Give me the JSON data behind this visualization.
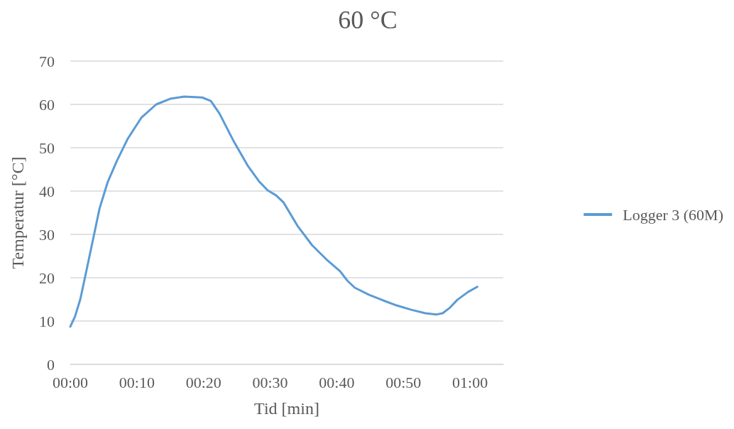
{
  "chart_data": {
    "type": "line",
    "title": "60 °C",
    "xlabel": "Tid [min]",
    "ylabel": "Temperatur [°C]",
    "xlim": [
      0,
      65
    ],
    "xticks": [
      {
        "value": 0,
        "label": "00:00"
      },
      {
        "value": 10,
        "label": "00:10"
      },
      {
        "value": 20,
        "label": "00:20"
      },
      {
        "value": 30,
        "label": "00:30"
      },
      {
        "value": 40,
        "label": "00:40"
      },
      {
        "value": 50,
        "label": "00:50"
      },
      {
        "value": 60,
        "label": "01:00"
      }
    ],
    "ylim": [
      0,
      70
    ],
    "yticks": [
      0,
      10,
      20,
      30,
      40,
      50,
      60,
      70
    ],
    "grid": "y",
    "legend": "right",
    "marker": "none",
    "line_style": "solid",
    "series": [
      {
        "name": "Logger 3 (60M)",
        "color": "#5b9bd5",
        "x": [
          0,
          0.7,
          1.5,
          2.2,
          3.3,
          4.4,
          5.6,
          7,
          8.6,
          10.7,
          12.9,
          15,
          17.1,
          19.8,
          21.1,
          22.4,
          24.6,
          26.7,
          28.3,
          29.6,
          30.9,
          32,
          34.1,
          36.3,
          38.4,
          40.5,
          41.6,
          42.7,
          44.8,
          46.9,
          49,
          51.2,
          53.3,
          54.9,
          55.9,
          57,
          58.1,
          59.7,
          61.1
        ],
        "values": [
          8.7,
          11,
          15,
          20,
          28,
          36,
          42,
          47,
          52,
          57,
          60,
          61.3,
          61.8,
          61.6,
          60.8,
          57.9,
          51.3,
          45.7,
          42.3,
          40.2,
          39,
          37.4,
          32,
          27.5,
          24.3,
          21.5,
          19.3,
          17.7,
          16.1,
          14.8,
          13.6,
          12.6,
          11.8,
          11.5,
          11.8,
          13.1,
          14.9,
          16.7,
          17.9
        ]
      }
    ]
  }
}
